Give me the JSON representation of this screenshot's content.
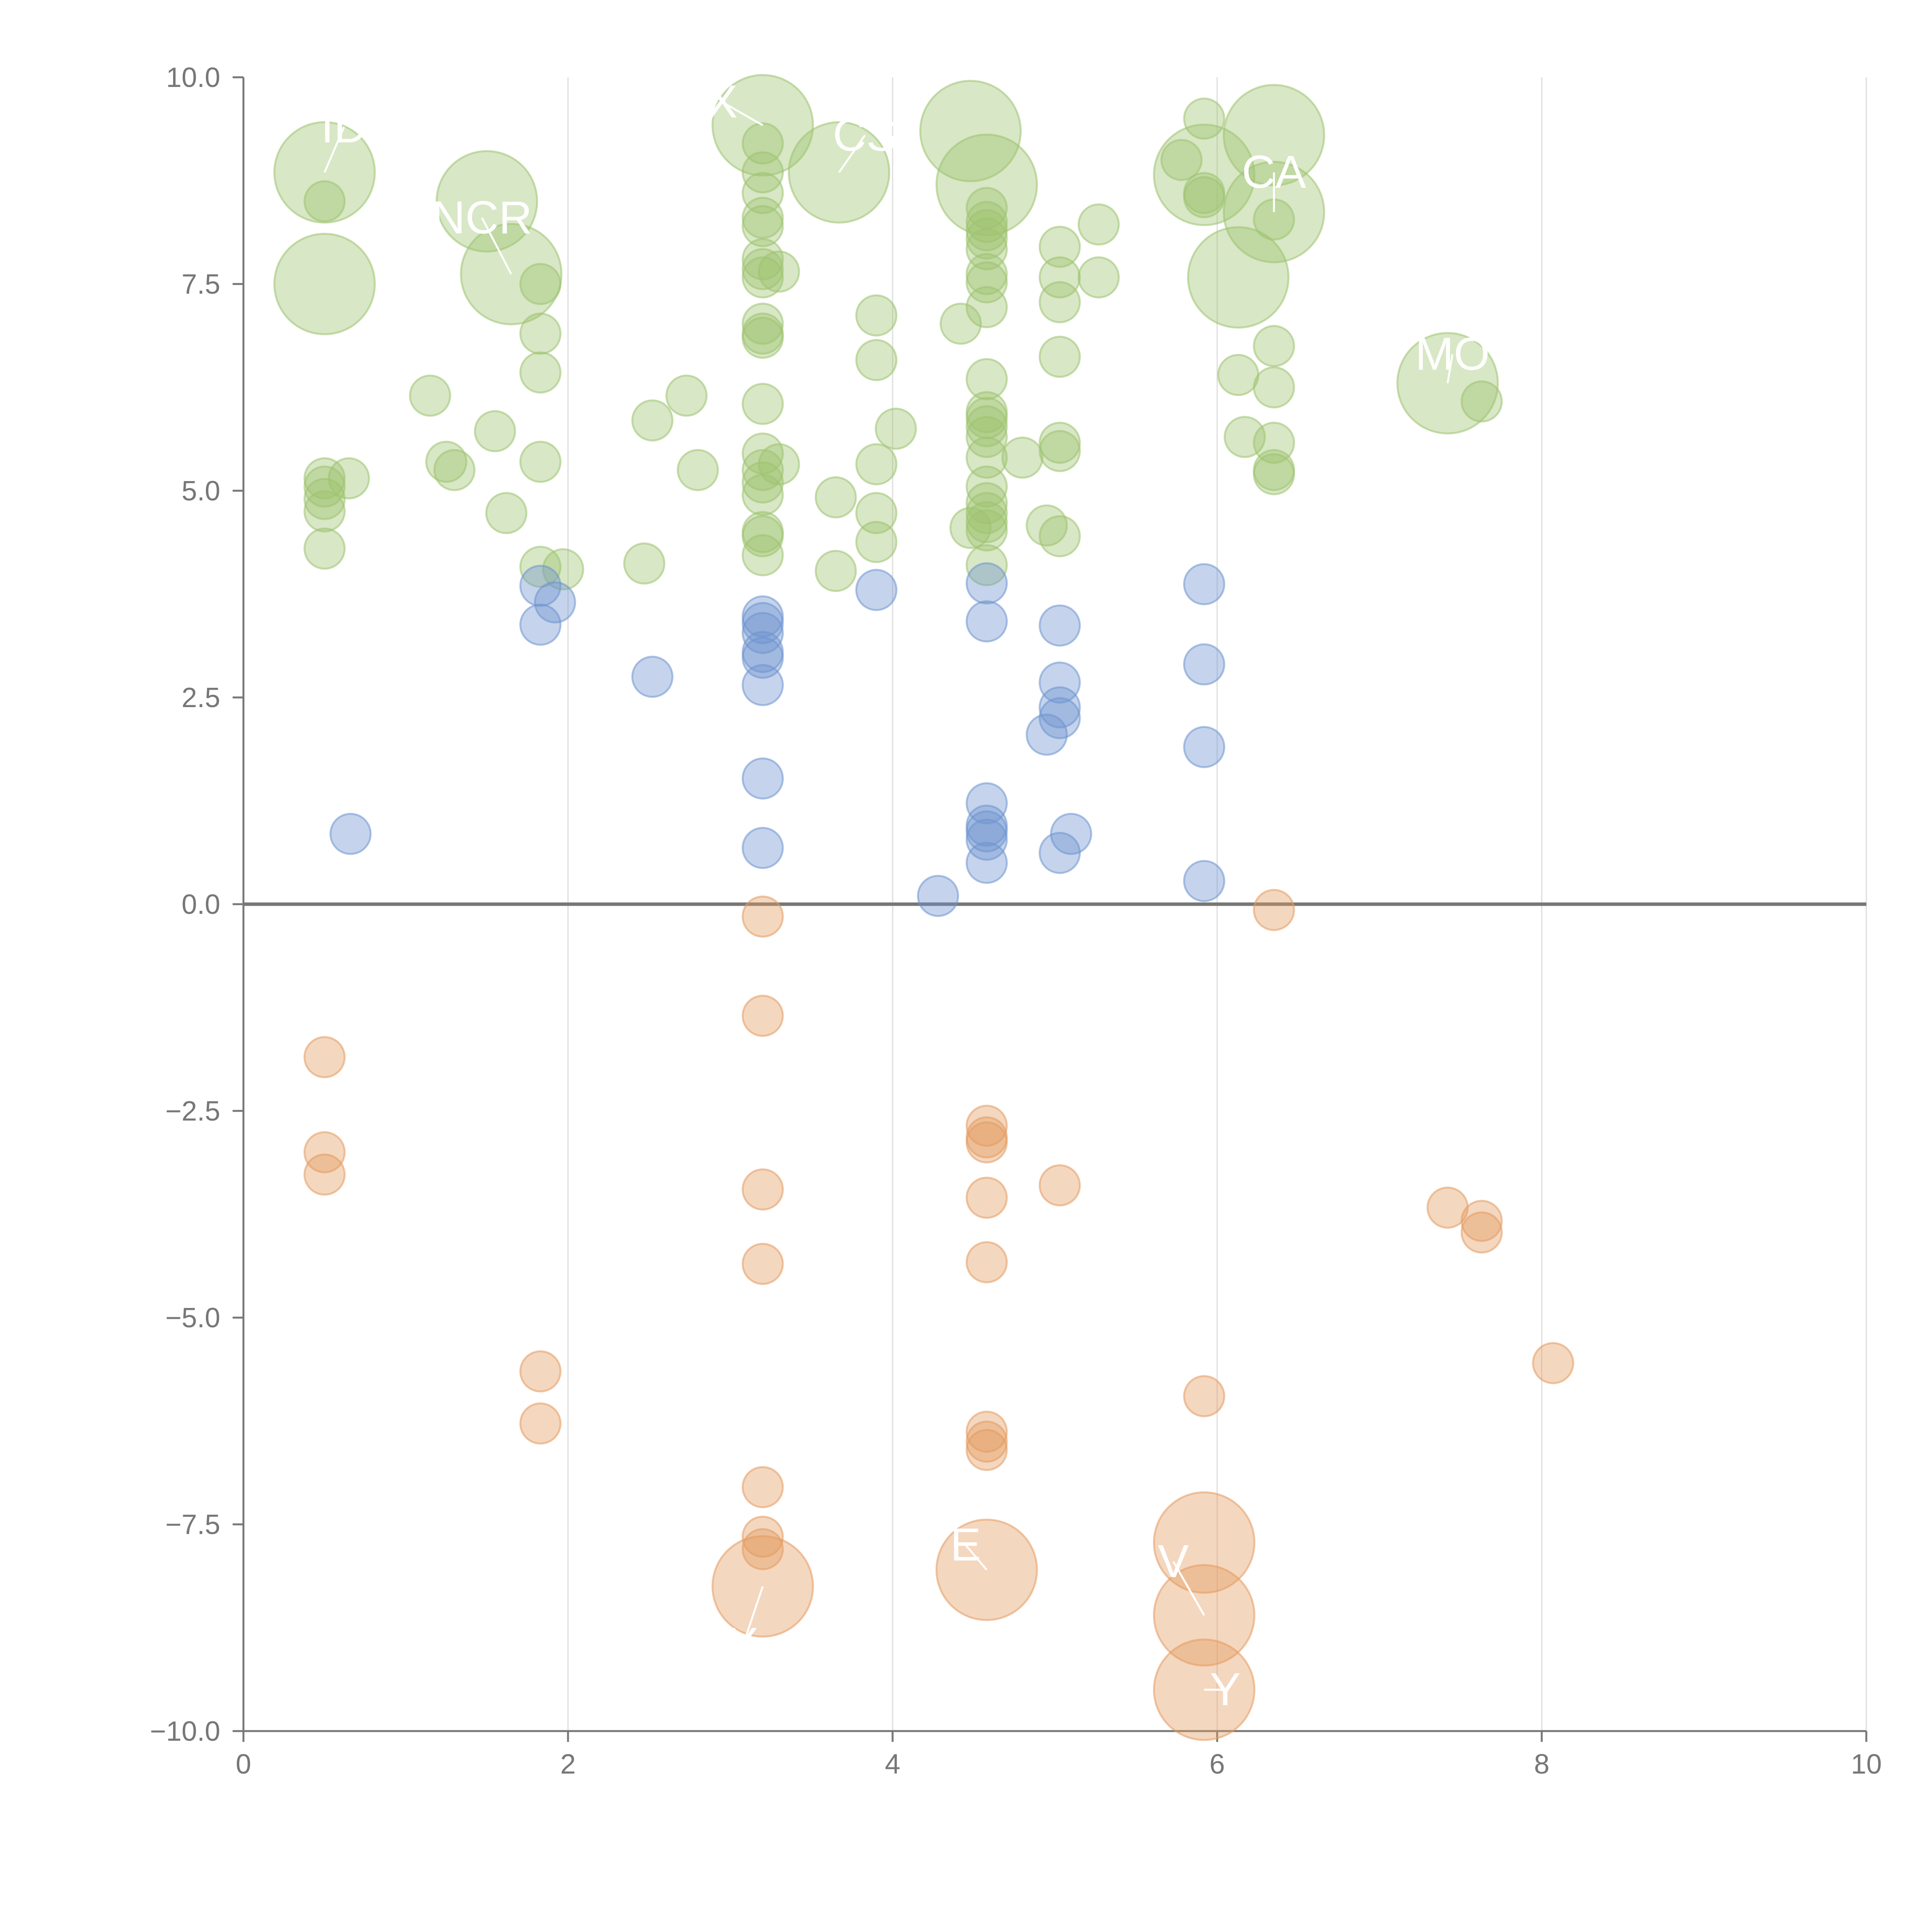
{
  "chart_data": {
    "type": "scatter",
    "variant": "bubble",
    "xlim": [
      0,
      10
    ],
    "ylim": [
      -10,
      10
    ],
    "x_ticks": [
      "0",
      "2",
      "4",
      "6",
      "8",
      "10"
    ],
    "y_ticks": [
      "10.0",
      "7.5",
      "5.0",
      "2.5",
      "0.0",
      "−2.5",
      "−5.0",
      "−7.5",
      "−10.0"
    ],
    "x_tick_values": [
      0,
      2,
      4,
      6,
      8,
      10
    ],
    "y_tick_values": [
      10,
      7.5,
      5,
      2.5,
      0,
      -2.5,
      -5,
      -7.5,
      -10
    ],
    "grid": "vertical",
    "zero_line": true,
    "colors": {
      "green": "#9dc36f",
      "blue": "#6d93cf",
      "orange": "#e49b60",
      "axis": "#777777",
      "grid": "#dddddd"
    },
    "series": [
      {
        "color": "green",
        "points": [
          [
            0.5,
            8.85,
            2.5
          ],
          [
            0.5,
            7.5,
            2.5
          ],
          [
            0.5,
            8.5,
            1
          ],
          [
            0.5,
            5.15,
            1
          ],
          [
            0.5,
            5.05,
            1
          ],
          [
            0.5,
            4.9,
            1
          ],
          [
            0.5,
            4.75,
            1
          ],
          [
            0.5,
            4.3,
            1
          ],
          [
            0.65,
            5.15,
            1
          ],
          [
            1.15,
            6.15,
            1
          ],
          [
            1.25,
            5.35,
            1
          ],
          [
            1.3,
            5.25,
            1
          ],
          [
            1.5,
            8.5,
            2.5
          ],
          [
            1.55,
            5.72,
            1
          ],
          [
            1.62,
            4.73,
            1
          ],
          [
            1.65,
            7.62,
            2.5
          ],
          [
            1.83,
            7.5,
            1
          ],
          [
            1.83,
            6.9,
            1
          ],
          [
            1.83,
            6.43,
            1
          ],
          [
            1.83,
            5.35,
            1
          ],
          [
            1.83,
            4.08,
            1
          ],
          [
            1.97,
            4.05,
            1
          ],
          [
            2.47,
            4.12,
            1
          ],
          [
            2.52,
            5.85,
            1
          ],
          [
            2.73,
            6.15,
            1
          ],
          [
            2.8,
            5.25,
            1
          ],
          [
            3.2,
            9.42,
            2.5
          ],
          [
            3.2,
            9.2,
            1
          ],
          [
            3.2,
            8.85,
            1
          ],
          [
            3.2,
            8.6,
            1
          ],
          [
            3.2,
            8.3,
            1
          ],
          [
            3.2,
            8.2,
            1
          ],
          [
            3.2,
            7.8,
            1
          ],
          [
            3.2,
            7.68,
            1
          ],
          [
            3.2,
            7.58,
            1
          ],
          [
            3.2,
            7.02,
            1
          ],
          [
            3.2,
            6.9,
            1
          ],
          [
            3.2,
            6.85,
            1
          ],
          [
            3.2,
            6.05,
            1
          ],
          [
            3.2,
            5.45,
            1
          ],
          [
            3.2,
            5.25,
            1
          ],
          [
            3.2,
            5.1,
            1
          ],
          [
            3.2,
            4.95,
            1
          ],
          [
            3.2,
            4.5,
            1
          ],
          [
            3.2,
            4.45,
            1
          ],
          [
            3.2,
            4.22,
            1
          ],
          [
            3.3,
            7.65,
            1
          ],
          [
            3.3,
            5.32,
            1
          ],
          [
            3.67,
            8.85,
            2.5
          ],
          [
            3.65,
            4.92,
            1
          ],
          [
            3.65,
            4.03,
            1
          ],
          [
            3.9,
            7.12,
            1
          ],
          [
            3.9,
            6.58,
            1
          ],
          [
            3.9,
            5.32,
            1
          ],
          [
            3.9,
            4.73,
            1
          ],
          [
            3.9,
            4.38,
            1
          ],
          [
            4.02,
            5.75,
            1
          ],
          [
            4.42,
            7.02,
            1
          ],
          [
            4.48,
            4.55,
            1
          ],
          [
            4.48,
            9.35,
            2.5
          ],
          [
            4.58,
            8.7,
            2.5
          ],
          [
            4.58,
            8.42,
            1
          ],
          [
            4.58,
            8.25,
            1
          ],
          [
            4.58,
            8.15,
            1
          ],
          [
            4.58,
            8.05,
            1
          ],
          [
            4.58,
            7.92,
            1
          ],
          [
            4.58,
            7.62,
            1
          ],
          [
            4.58,
            7.52,
            1
          ],
          [
            4.58,
            7.22,
            1
          ],
          [
            4.58,
            6.35,
            1
          ],
          [
            4.58,
            5.95,
            1
          ],
          [
            4.58,
            5.88,
            1
          ],
          [
            4.58,
            5.78,
            1
          ],
          [
            4.58,
            5.65,
            1
          ],
          [
            4.58,
            5.4,
            1
          ],
          [
            4.58,
            5.05,
            1
          ],
          [
            4.58,
            4.85,
            1
          ],
          [
            4.58,
            4.73,
            1
          ],
          [
            4.58,
            4.62,
            1
          ],
          [
            4.58,
            4.52,
            1
          ],
          [
            4.58,
            4.1,
            1
          ],
          [
            4.8,
            5.4,
            1
          ],
          [
            4.95,
            4.58,
            1
          ],
          [
            5.03,
            7.95,
            1
          ],
          [
            5.03,
            7.58,
            1
          ],
          [
            5.03,
            7.28,
            1
          ],
          [
            5.03,
            6.62,
            1
          ],
          [
            5.03,
            5.58,
            1
          ],
          [
            5.03,
            5.48,
            1
          ],
          [
            5.03,
            4.45,
            1
          ],
          [
            5.27,
            8.22,
            1
          ],
          [
            5.27,
            7.58,
            1
          ],
          [
            5.92,
            9.5,
            1
          ],
          [
            5.78,
            9.0,
            1
          ],
          [
            5.92,
            8.82,
            2.5
          ],
          [
            5.92,
            8.6,
            1
          ],
          [
            5.92,
            8.55,
            1
          ],
          [
            6.13,
            7.58,
            2.5
          ],
          [
            6.13,
            6.4,
            1
          ],
          [
            6.17,
            5.65,
            1
          ],
          [
            6.35,
            9.3,
            2.5
          ],
          [
            6.35,
            8.37,
            2.5
          ],
          [
            6.35,
            8.28,
            1
          ],
          [
            6.35,
            6.75,
            1
          ],
          [
            6.35,
            6.25,
            1
          ],
          [
            6.35,
            5.58,
            1
          ],
          [
            6.35,
            5.25,
            1
          ],
          [
            6.35,
            5.2,
            1
          ],
          [
            7.42,
            6.3,
            2.5
          ],
          [
            7.63,
            6.08,
            1
          ]
        ]
      },
      {
        "color": "blue",
        "points": [
          [
            0.66,
            0.85,
            1
          ],
          [
            1.83,
            3.85,
            1
          ],
          [
            1.83,
            3.38,
            1
          ],
          [
            1.92,
            3.65,
            1
          ],
          [
            2.52,
            2.75,
            1
          ],
          [
            3.2,
            3.48,
            1
          ],
          [
            3.2,
            3.4,
            1
          ],
          [
            3.2,
            3.28,
            1
          ],
          [
            3.2,
            3.05,
            1
          ],
          [
            3.2,
            2.98,
            1
          ],
          [
            3.2,
            2.65,
            1
          ],
          [
            3.2,
            1.52,
            1
          ],
          [
            3.2,
            0.68,
            1
          ],
          [
            3.9,
            3.8,
            1
          ],
          [
            4.28,
            0.1,
            1
          ],
          [
            4.58,
            3.88,
            1
          ],
          [
            4.58,
            3.42,
            1
          ],
          [
            4.58,
            1.22,
            1
          ],
          [
            4.58,
            0.95,
            1
          ],
          [
            4.58,
            0.88,
            1
          ],
          [
            4.58,
            0.78,
            1
          ],
          [
            4.58,
            0.5,
            1
          ],
          [
            4.95,
            2.05,
            1
          ],
          [
            5.03,
            3.37,
            1
          ],
          [
            5.03,
            2.68,
            1
          ],
          [
            5.03,
            2.38,
            1
          ],
          [
            5.03,
            2.25,
            1
          ],
          [
            5.03,
            0.62,
            1
          ],
          [
            5.1,
            0.85,
            1
          ],
          [
            5.92,
            3.87,
            1
          ],
          [
            5.92,
            2.9,
            1
          ],
          [
            5.92,
            1.9,
            1
          ],
          [
            5.92,
            0.28,
            1
          ]
        ]
      },
      {
        "color": "orange",
        "points": [
          [
            0.5,
            -1.85,
            1
          ],
          [
            0.5,
            -3.0,
            1
          ],
          [
            0.5,
            -3.27,
            1
          ],
          [
            1.83,
            -5.65,
            1
          ],
          [
            1.83,
            -6.28,
            1
          ],
          [
            3.2,
            -0.15,
            1
          ],
          [
            3.2,
            -1.35,
            1
          ],
          [
            3.2,
            -3.45,
            1
          ],
          [
            3.2,
            -4.35,
            1
          ],
          [
            3.2,
            -7.05,
            1
          ],
          [
            3.2,
            -7.65,
            1
          ],
          [
            3.2,
            -7.8,
            1
          ],
          [
            3.2,
            -8.25,
            2.5
          ],
          [
            4.58,
            -2.68,
            1
          ],
          [
            4.58,
            -2.82,
            1
          ],
          [
            4.58,
            -2.88,
            1
          ],
          [
            4.58,
            -3.55,
            1
          ],
          [
            4.58,
            -4.33,
            1
          ],
          [
            4.58,
            -6.38,
            1
          ],
          [
            4.58,
            -6.5,
            1
          ],
          [
            4.58,
            -6.6,
            1
          ],
          [
            4.58,
            -8.05,
            2.5
          ],
          [
            5.03,
            -3.4,
            1
          ],
          [
            5.92,
            -5.95,
            1
          ],
          [
            5.92,
            -7.72,
            2.5
          ],
          [
            5.92,
            -8.6,
            2.5
          ],
          [
            5.92,
            -9.5,
            2.5
          ],
          [
            6.35,
            -0.07,
            1
          ],
          [
            7.42,
            -3.67,
            1
          ],
          [
            7.63,
            -3.83,
            1
          ],
          [
            7.63,
            -3.97,
            1
          ],
          [
            8.07,
            -5.55,
            1
          ]
        ]
      }
    ],
    "bubble_labels": [
      {
        "text": "ID",
        "x": 0.5,
        "y": 8.85,
        "lx": 0.62,
        "ly": 9.4
      },
      {
        "text": "NCR",
        "x": 1.65,
        "y": 7.62,
        "lx": 1.47,
        "ly": 8.3
      },
      {
        "text": "X",
        "x": 3.2,
        "y": 9.42,
        "lx": 2.95,
        "ly": 9.7
      },
      {
        "text": "CS",
        "x": 3.67,
        "y": 8.85,
        "lx": 3.83,
        "ly": 9.3
      },
      {
        "text": "CA",
        "x": 6.35,
        "y": 8.37,
        "lx": 6.35,
        "ly": 8.85
      },
      {
        "text": "MO",
        "x": 7.42,
        "y": 6.3,
        "lx": 7.45,
        "ly": 6.65
      },
      {
        "text": "X",
        "x": 3.2,
        "y": -8.25,
        "lx": 3.08,
        "ly": -8.95
      },
      {
        "text": "E",
        "x": 4.58,
        "y": -8.05,
        "lx": 4.45,
        "ly": -7.75
      },
      {
        "text": "V",
        "x": 5.92,
        "y": -8.6,
        "lx": 5.73,
        "ly": -7.95
      },
      {
        "text": "Y",
        "x": 5.92,
        "y": -9.5,
        "lx": 6.05,
        "ly": -9.5
      }
    ]
  }
}
